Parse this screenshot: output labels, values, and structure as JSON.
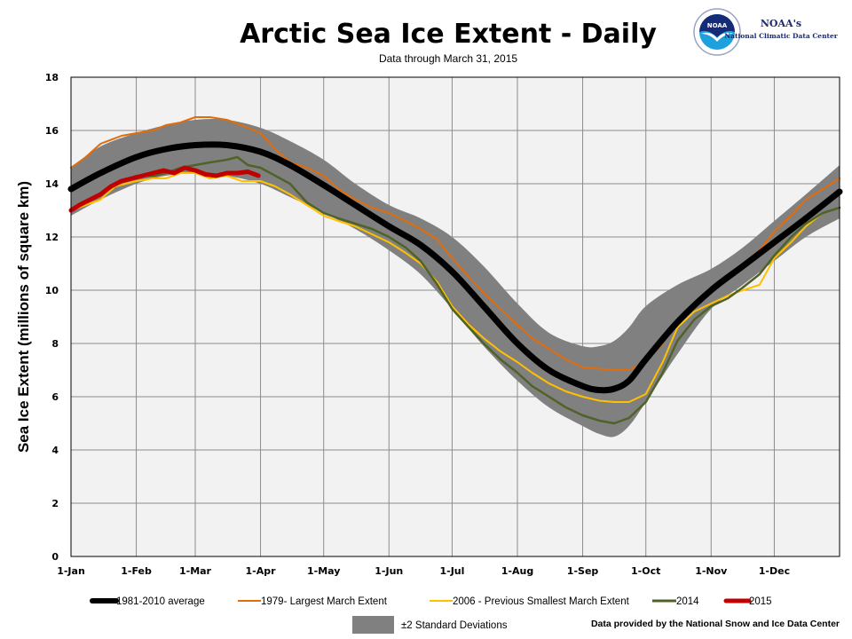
{
  "chart_data": {
    "type": "line",
    "title": "Arctic Sea Ice Extent - Daily",
    "subtitle": "Data through March 31, 2015",
    "xlabel": "",
    "ylabel": "Sea Ice Extent (millions of square km)",
    "ylim": [
      0,
      18
    ],
    "xlim_day_of_year": [
      1,
      366
    ],
    "yticks": [
      "0",
      "2",
      "4",
      "6",
      "8",
      "10",
      "12",
      "14",
      "16",
      "18"
    ],
    "ytick_values": [
      0,
      2,
      4,
      6,
      8,
      10,
      12,
      14,
      16,
      18
    ],
    "xtick_labels": [
      "1-Jan",
      "1-Feb",
      "1-Mar",
      "1-Apr",
      "1-May",
      "1-Jun",
      "1-Jul",
      "1-Aug",
      "1-Sep",
      "1-Oct",
      "1-Nov",
      "1-Dec"
    ],
    "xtick_days": [
      1,
      32,
      60,
      91,
      121,
      152,
      182,
      213,
      244,
      274,
      305,
      335
    ],
    "grid": true,
    "band": {
      "name": "±2 Standard Deviations",
      "color": "#808080",
      "x": [
        1,
        15,
        32,
        46,
        60,
        75,
        91,
        105,
        121,
        136,
        152,
        167,
        182,
        197,
        213,
        228,
        244,
        252,
        259,
        266,
        274,
        289,
        305,
        320,
        335,
        350,
        366
      ],
      "upper": [
        14.6,
        15.4,
        15.9,
        16.2,
        16.4,
        16.4,
        16.1,
        15.6,
        14.9,
        14.0,
        13.2,
        12.7,
        12.0,
        10.9,
        9.5,
        8.4,
        7.9,
        7.9,
        8.1,
        8.6,
        9.4,
        10.2,
        10.8,
        11.6,
        12.6,
        13.6,
        14.7
      ],
      "lower": [
        12.8,
        13.4,
        14.0,
        14.3,
        14.4,
        14.3,
        14.0,
        13.5,
        12.9,
        12.3,
        11.5,
        10.6,
        9.3,
        7.9,
        6.6,
        5.6,
        4.9,
        4.6,
        4.5,
        4.9,
        5.8,
        7.6,
        9.3,
        10.2,
        11.1,
        12.0,
        12.7
      ]
    },
    "series": [
      {
        "name": "1981-2010 average",
        "color": "#000000",
        "x": [
          1,
          15,
          32,
          46,
          60,
          75,
          91,
          105,
          121,
          136,
          152,
          167,
          182,
          197,
          213,
          228,
          244,
          252,
          259,
          266,
          274,
          289,
          305,
          320,
          335,
          350,
          366
        ],
        "values": [
          13.8,
          14.4,
          15.0,
          15.3,
          15.45,
          15.45,
          15.2,
          14.7,
          13.95,
          13.2,
          12.4,
          11.7,
          10.7,
          9.4,
          8.0,
          7.0,
          6.4,
          6.25,
          6.3,
          6.6,
          7.4,
          8.8,
          10.0,
          10.9,
          11.8,
          12.7,
          13.7
        ]
      },
      {
        "name": "1979- Largest March Extent",
        "color": "#e36c0a",
        "x": [
          1,
          8,
          15,
          25,
          32,
          40,
          46,
          53,
          60,
          67,
          75,
          82,
          91,
          98,
          105,
          113,
          121,
          128,
          136,
          144,
          152,
          160,
          167,
          175,
          182,
          190,
          197,
          205,
          213,
          220,
          228,
          236,
          244,
          252,
          259,
          266,
          274,
          282,
          289,
          297,
          305,
          313,
          320,
          328,
          335,
          343,
          350,
          358,
          366
        ],
        "values": [
          14.6,
          15.0,
          15.5,
          15.8,
          15.9,
          16.0,
          16.2,
          16.3,
          16.5,
          16.5,
          16.4,
          16.2,
          15.9,
          15.3,
          14.8,
          14.6,
          14.3,
          13.8,
          13.4,
          13.1,
          12.9,
          12.6,
          12.3,
          11.9,
          11.2,
          10.5,
          9.9,
          9.3,
          8.7,
          8.2,
          7.8,
          7.4,
          7.1,
          7.05,
          7.0,
          7.0,
          7.3,
          8.0,
          8.8,
          9.4,
          10.1,
          10.5,
          11.0,
          11.5,
          12.2,
          12.8,
          13.4,
          13.8,
          14.2
        ]
      },
      {
        "name": "2006 - Previous Smallest March Extent",
        "color": "#ffc000",
        "x": [
          1,
          8,
          15,
          22,
          32,
          40,
          46,
          53,
          60,
          67,
          75,
          82,
          91,
          98,
          105,
          113,
          121,
          128,
          136,
          144,
          152,
          160,
          167,
          175,
          182,
          190,
          197,
          205,
          213,
          220,
          228,
          236,
          244,
          252,
          259,
          266,
          274,
          282,
          289,
          297,
          305,
          313,
          320,
          328,
          335,
          343,
          350,
          358,
          366
        ],
        "values": [
          13.0,
          13.2,
          13.4,
          13.9,
          14.1,
          14.2,
          14.2,
          14.4,
          14.4,
          14.2,
          14.3,
          14.1,
          14.1,
          13.9,
          13.6,
          13.2,
          12.8,
          12.6,
          12.4,
          12.1,
          11.8,
          11.4,
          11.0,
          10.3,
          9.4,
          8.7,
          8.2,
          7.7,
          7.3,
          6.9,
          6.5,
          6.2,
          6.0,
          5.85,
          5.8,
          5.8,
          6.1,
          7.3,
          8.6,
          9.2,
          9.5,
          9.8,
          10.0,
          10.2,
          11.2,
          11.8,
          12.4,
          12.9,
          13.1
        ]
      },
      {
        "name": "2014",
        "color": "#4f6228",
        "x": [
          1,
          8,
          15,
          22,
          32,
          40,
          46,
          53,
          60,
          67,
          75,
          80,
          85,
          91,
          98,
          105,
          113,
          121,
          128,
          136,
          144,
          152,
          160,
          167,
          175,
          182,
          190,
          197,
          205,
          213,
          220,
          228,
          236,
          244,
          252,
          259,
          266,
          274,
          282,
          289,
          297,
          305,
          313,
          320,
          328,
          335,
          343,
          350,
          358,
          366
        ],
        "values": [
          13.0,
          13.3,
          13.6,
          14.0,
          14.3,
          14.3,
          14.4,
          14.6,
          14.7,
          14.8,
          14.9,
          15.0,
          14.7,
          14.6,
          14.3,
          14.0,
          13.3,
          12.9,
          12.7,
          12.5,
          12.3,
          12.0,
          11.6,
          11.1,
          10.2,
          9.3,
          8.6,
          8.0,
          7.4,
          6.9,
          6.4,
          6.0,
          5.6,
          5.3,
          5.1,
          5.0,
          5.2,
          5.8,
          6.9,
          8.1,
          8.9,
          9.4,
          9.7,
          10.1,
          10.6,
          11.3,
          12.0,
          12.5,
          12.9,
          13.1
        ]
      },
      {
        "name": "2015",
        "color": "#c00000",
        "x": [
          1,
          5,
          10,
          15,
          20,
          25,
          30,
          35,
          40,
          45,
          50,
          55,
          60,
          65,
          70,
          75,
          80,
          85,
          90
        ],
        "values": [
          13.0,
          13.2,
          13.4,
          13.6,
          13.9,
          14.1,
          14.2,
          14.3,
          14.4,
          14.5,
          14.4,
          14.6,
          14.5,
          14.35,
          14.3,
          14.4,
          14.4,
          14.45,
          14.3
        ]
      }
    ],
    "legend_position": "bottom"
  },
  "header": {
    "logo_text": "NOAA",
    "org_name": "NOAA's",
    "org_subtitle": "National Climatic Data Center"
  },
  "footer": {
    "credit": "Data provided  by the National Snow and Ice Data Center"
  }
}
